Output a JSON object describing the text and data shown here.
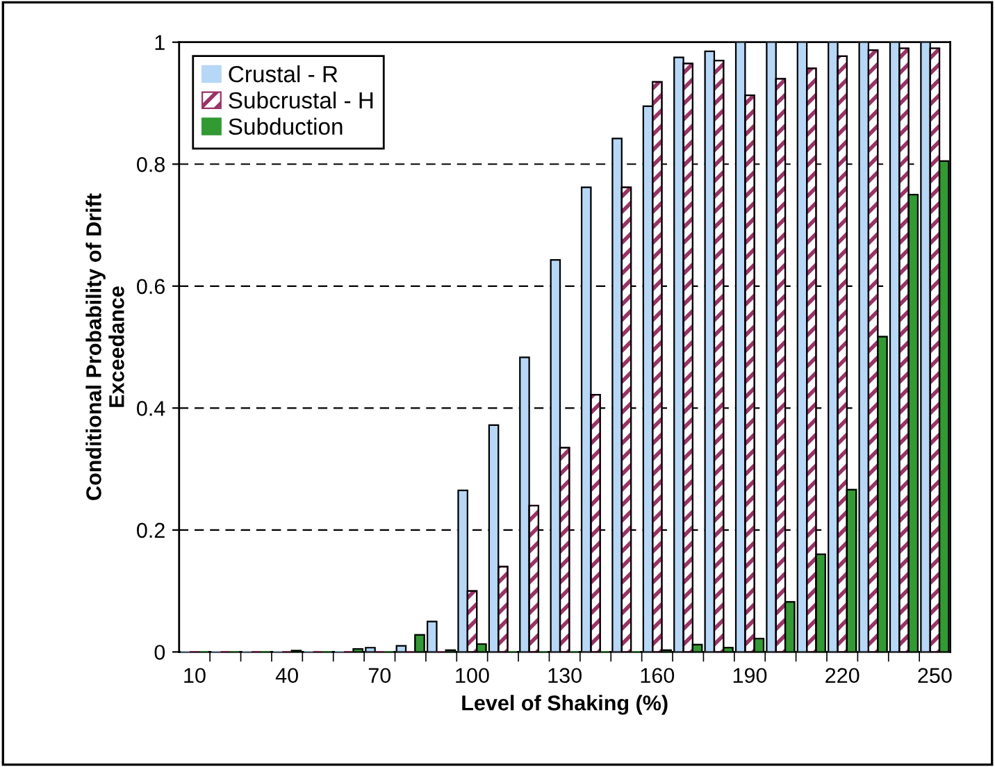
{
  "chart_data": {
    "type": "bar",
    "xlabel": "Level of Shaking (%)",
    "ylabel": "Conditional Probability of Drift\nExceedance",
    "categories": [
      "10",
      null,
      null,
      "40",
      null,
      null,
      "70",
      null,
      null,
      "100",
      null,
      null,
      "130",
      null,
      null,
      "160",
      null,
      null,
      "190",
      null,
      null,
      "220",
      null,
      null,
      "250"
    ],
    "series": [
      {
        "name": "Crustal - R",
        "color": "#b7d7f7",
        "values": [
          0,
          0,
          0,
          0,
          0,
          0,
          0.007,
          0.01,
          0.05,
          0.265,
          0.372,
          0.483,
          0.643,
          0.762,
          0.842,
          0.895,
          0.975,
          0.985,
          1,
          1,
          1,
          1,
          1,
          1,
          1
        ]
      },
      {
        "name": "Subcrustal - H",
        "color": "#993366",
        "values": [
          0,
          0,
          0,
          0,
          0,
          0,
          0,
          0,
          0,
          0.1,
          0.14,
          0.24,
          0.335,
          0.422,
          0.762,
          0.935,
          0.965,
          0.97,
          0.913,
          0.94,
          0.957,
          0.977,
          0.987,
          0.99,
          0.99
        ]
      },
      {
        "name": "Subduction",
        "color": "#339933",
        "values": [
          0,
          0,
          0,
          0.002,
          0,
          0.005,
          0,
          0.028,
          0.003,
          0.013,
          0,
          0,
          0,
          0,
          0,
          0.003,
          0.012,
          0.007,
          0.022,
          0.082,
          0.16,
          0.266,
          0.517,
          0.75,
          0.805
        ]
      }
    ],
    "ylim": [
      0,
      1
    ],
    "yticks": [
      0,
      0.2,
      0.4,
      0.6,
      0.8,
      1
    ],
    "grid": "y",
    "legend": "top left"
  }
}
